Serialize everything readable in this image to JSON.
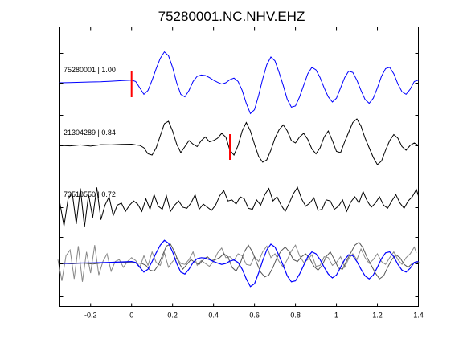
{
  "chart_data": {
    "type": "line",
    "title": "75280001.NC.NHV.EHZ",
    "xlabel": "",
    "ylabel": "",
    "xlim": [
      -0.35,
      1.4
    ],
    "x_ticks": [
      -0.2,
      0,
      0.2,
      0.4,
      0.6,
      0.8,
      1,
      1.2,
      1.4
    ],
    "x_tick_labels": [
      "-0.2",
      "0",
      "0.2",
      "0.4",
      "0.6",
      "0.8",
      "1",
      "1.2",
      "1.4"
    ],
    "grid": false,
    "traces": [
      {
        "label": "75280001 | 1.00",
        "color": "#0000ff",
        "pick_time": 0.0,
        "pick_color": "#ff0000",
        "x": [
          -0.35,
          -0.3,
          -0.25,
          -0.2,
          -0.15,
          -0.1,
          -0.05,
          0.0,
          0.02,
          0.04,
          0.06,
          0.08,
          0.1,
          0.12,
          0.14,
          0.16,
          0.18,
          0.2,
          0.22,
          0.24,
          0.26,
          0.28,
          0.3,
          0.32,
          0.34,
          0.36,
          0.38,
          0.4,
          0.42,
          0.44,
          0.46,
          0.48,
          0.5,
          0.52,
          0.54,
          0.56,
          0.58,
          0.6,
          0.62,
          0.64,
          0.66,
          0.68,
          0.7,
          0.72,
          0.74,
          0.76,
          0.78,
          0.8,
          0.82,
          0.84,
          0.86,
          0.88,
          0.9,
          0.92,
          0.94,
          0.96,
          0.98,
          1.0,
          1.02,
          1.04,
          1.06,
          1.08,
          1.1,
          1.12,
          1.14,
          1.16,
          1.18,
          1.2,
          1.22,
          1.24,
          1.26,
          1.28,
          1.3,
          1.32,
          1.34,
          1.36,
          1.38,
          1.4
        ],
        "y": [
          0,
          0.01,
          0.02,
          0.03,
          0.04,
          0.06,
          0.08,
          0.1,
          0.05,
          -0.2,
          -0.45,
          -0.3,
          0.1,
          0.55,
          0.95,
          1.2,
          1.05,
          0.6,
          0.0,
          -0.45,
          -0.55,
          -0.3,
          0.05,
          0.25,
          0.3,
          0.28,
          0.2,
          0.1,
          0.02,
          -0.05,
          0.0,
          0.12,
          0.18,
          0.05,
          -0.3,
          -0.8,
          -1.2,
          -1.05,
          -0.5,
          0.15,
          0.7,
          1.0,
          0.85,
          0.4,
          -0.1,
          -0.65,
          -0.95,
          -0.9,
          -0.55,
          -0.1,
          0.35,
          0.6,
          0.5,
          0.2,
          -0.2,
          -0.55,
          -0.75,
          -0.6,
          -0.2,
          0.2,
          0.45,
          0.4,
          0.1,
          -0.3,
          -0.65,
          -0.8,
          -0.6,
          -0.2,
          0.25,
          0.55,
          0.6,
          0.35,
          -0.05,
          -0.35,
          -0.45,
          -0.25,
          0.05,
          0.1
        ],
        "note_y_semantics": "relative amplitude"
      },
      {
        "label": "21304289 | 0.84",
        "color": "#000000",
        "pick_time": 0.48,
        "pick_color": "#ff0000",
        "x": [
          -0.35,
          -0.3,
          -0.25,
          -0.2,
          -0.15,
          -0.1,
          -0.05,
          0.0,
          0.02,
          0.04,
          0.06,
          0.08,
          0.1,
          0.12,
          0.14,
          0.16,
          0.18,
          0.2,
          0.22,
          0.24,
          0.26,
          0.28,
          0.3,
          0.32,
          0.34,
          0.36,
          0.38,
          0.4,
          0.42,
          0.44,
          0.46,
          0.48,
          0.5,
          0.52,
          0.54,
          0.56,
          0.58,
          0.6,
          0.62,
          0.64,
          0.66,
          0.68,
          0.7,
          0.72,
          0.74,
          0.76,
          0.78,
          0.8,
          0.82,
          0.84,
          0.86,
          0.88,
          0.9,
          0.92,
          0.94,
          0.96,
          0.98,
          1.0,
          1.02,
          1.04,
          1.06,
          1.08,
          1.1,
          1.12,
          1.14,
          1.16,
          1.18,
          1.2,
          1.22,
          1.24,
          1.26,
          1.28,
          1.3,
          1.32,
          1.34,
          1.36,
          1.38,
          1.4
        ],
        "y": [
          0,
          -0.02,
          0.02,
          -0.03,
          0.03,
          0.02,
          0.04,
          0.05,
          0.02,
          0.0,
          -0.1,
          -0.35,
          -0.4,
          -0.1,
          0.4,
          0.9,
          1.0,
          0.6,
          0.05,
          -0.3,
          -0.05,
          0.2,
          0.05,
          -0.05,
          0.2,
          0.35,
          0.15,
          0.2,
          0.3,
          0.5,
          0.35,
          -0.2,
          -0.4,
          0.0,
          0.6,
          0.95,
          0.6,
          0.05,
          -0.45,
          -0.7,
          -0.6,
          -0.2,
          0.3,
          0.65,
          0.85,
          0.6,
          0.2,
          0.1,
          0.35,
          0.5,
          0.25,
          -0.15,
          -0.35,
          -0.1,
          0.35,
          0.6,
          0.2,
          -0.25,
          -0.3,
          0.15,
          0.55,
          0.95,
          1.1,
          0.8,
          0.3,
          -0.1,
          -0.5,
          -0.8,
          -0.65,
          -0.2,
          0.2,
          0.45,
          0.3,
          -0.05,
          -0.2,
          0.0,
          0.1,
          0.0
        ],
        "note_y_semantics": "relative amplitude"
      },
      {
        "label": "73518550 | 0.72",
        "color": "#000000",
        "x": [
          -0.35,
          -0.33,
          -0.31,
          -0.29,
          -0.27,
          -0.25,
          -0.23,
          -0.21,
          -0.19,
          -0.17,
          -0.15,
          -0.13,
          -0.11,
          -0.09,
          -0.07,
          -0.05,
          -0.03,
          -0.01,
          0.01,
          0.03,
          0.05,
          0.07,
          0.09,
          0.11,
          0.13,
          0.15,
          0.17,
          0.19,
          0.21,
          0.23,
          0.25,
          0.27,
          0.29,
          0.31,
          0.33,
          0.35,
          0.37,
          0.39,
          0.41,
          0.43,
          0.45,
          0.47,
          0.49,
          0.51,
          0.53,
          0.55,
          0.57,
          0.59,
          0.61,
          0.63,
          0.65,
          0.67,
          0.69,
          0.71,
          0.73,
          0.75,
          0.77,
          0.79,
          0.81,
          0.83,
          0.85,
          0.87,
          0.89,
          0.91,
          0.93,
          0.95,
          0.97,
          0.99,
          1.01,
          1.03,
          1.05,
          1.07,
          1.09,
          1.11,
          1.13,
          1.15,
          1.17,
          1.19,
          1.21,
          1.23,
          1.25,
          1.27,
          1.29,
          1.31,
          1.33,
          1.35,
          1.37,
          1.39,
          1.4
        ],
        "y": [
          0.2,
          -0.9,
          0.4,
          0.7,
          -0.8,
          0.9,
          -0.95,
          0.6,
          -0.5,
          0.95,
          -0.6,
          0.1,
          0.5,
          -0.4,
          0.1,
          0.2,
          -0.2,
          0.1,
          0.3,
          0.15,
          -0.2,
          0.4,
          -0.1,
          0.6,
          0.05,
          -0.1,
          0.55,
          -0.2,
          0.1,
          0.3,
          0.0,
          -0.05,
          0.2,
          0.6,
          -0.1,
          0.15,
          0.0,
          -0.15,
          0.1,
          0.55,
          0.8,
          0.3,
          0.35,
          0.15,
          0.5,
          0.4,
          -0.05,
          -0.1,
          0.35,
          0.1,
          0.6,
          0.9,
          0.3,
          0.5,
          0.1,
          -0.2,
          0.2,
          0.65,
          0.95,
          0.4,
          0.05,
          0.2,
          0.45,
          -0.15,
          -0.1,
          0.35,
          0.3,
          -0.1,
          0.05,
          0.35,
          -0.2,
          0.25,
          0.5,
          0.2,
          0.75,
          0.3,
          0.0,
          0.2,
          0.5,
          0.1,
          -0.05,
          0.3,
          0.6,
          0.2,
          -0.05,
          0.3,
          0.5,
          0.85,
          0.55
        ],
        "note_y_semantics": "relative amplitude"
      }
    ],
    "overlay": {
      "note": "Bottom panel overlays all three traces (blue reference plus two gray traces).",
      "colors": [
        "#0000ff",
        "#555555",
        "#888888"
      ]
    }
  }
}
